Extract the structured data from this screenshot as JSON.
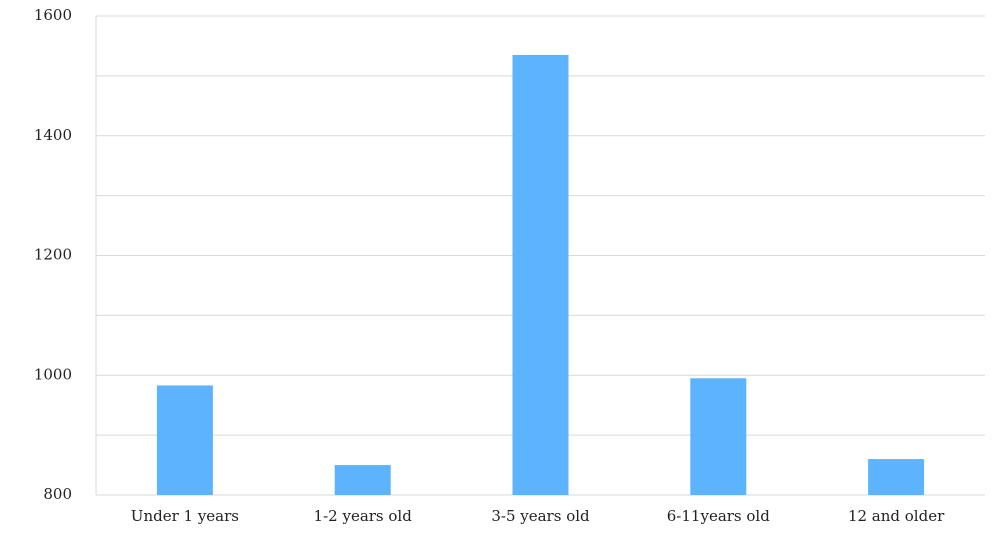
{
  "chart_data": {
    "type": "bar",
    "categories": [
      "Under 1 years",
      "1-2 years old",
      "3-5 years old",
      "6-11years old",
      "12 and older"
    ],
    "values": [
      983,
      850,
      1535,
      995,
      860
    ],
    "color": "#5eb3ff",
    "ylim": [
      800,
      1600
    ],
    "yticks": [
      800,
      1000,
      1200,
      1400,
      1600
    ],
    "minor_yticks": [
      900,
      1100,
      1300,
      1500
    ],
    "grid": true
  }
}
